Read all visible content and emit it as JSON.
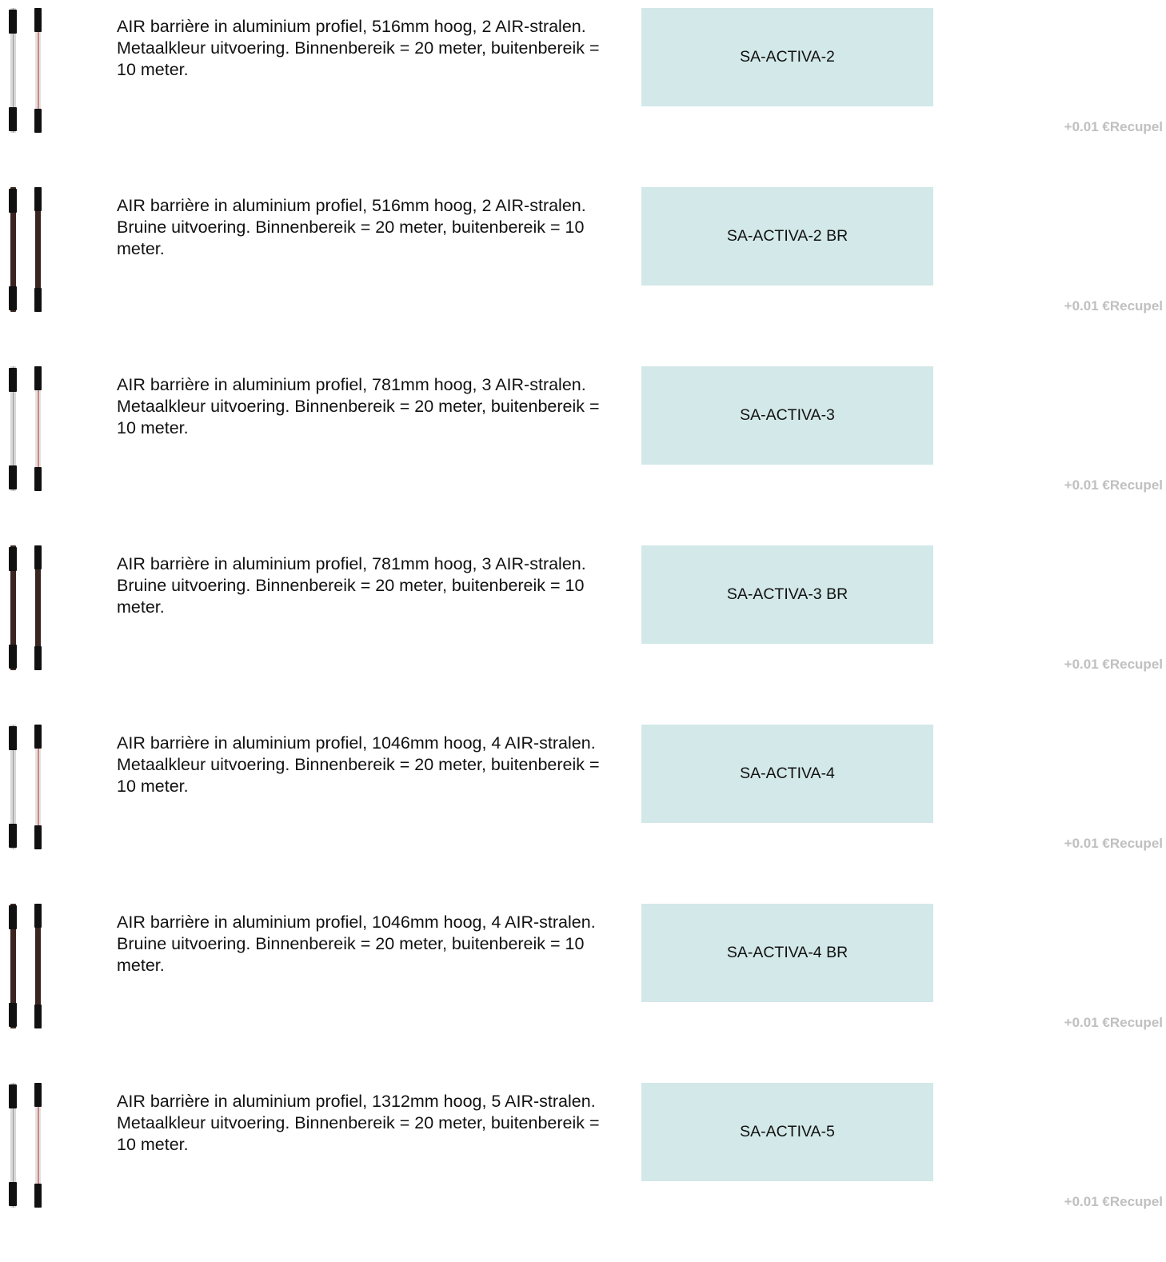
{
  "rows": [
    {
      "description": "AIR barrière in aluminium profiel, 516mm hoog, 2 AIR-stralen. Metaalkleur uitvoering. Binnenbereik = 20 meter, buitenbereik = 10 meter.",
      "code": "SA-ACTIVA-2",
      "recupel": "+0.01 €Recupel"
    },
    {
      "description": "AIR barrière in aluminium profiel, 516mm hoog, 2 AIR-stralen. Bruine uitvoering. Binnenbereik = 20 meter, buitenbereik = 10 meter.",
      "code": "SA-ACTIVA-2 BR",
      "recupel": "+0.01 €Recupel"
    },
    {
      "description": "AIR barrière in aluminium profiel, 781mm hoog, 3 AIR-stralen. Metaalkleur uitvoering. Binnenbereik = 20 meter, buitenbereik = 10 meter.",
      "code": "SA-ACTIVA-3",
      "recupel": "+0.01 €Recupel"
    },
    {
      "description": "AIR barrière in aluminium profiel, 781mm hoog, 3 AIR-stralen. Bruine uitvoering. Binnenbereik = 20 meter, buitenbereik = 10 meter.",
      "code": "SA-ACTIVA-3 BR",
      "recupel": "+0.01 €Recupel"
    },
    {
      "description": "AIR barrière in aluminium profiel, 1046mm hoog, 4 AIR-stralen. Metaalkleur uitvoering. Binnenbereik = 20 meter, buitenbereik = 10 meter.",
      "code": "SA-ACTIVA-4",
      "recupel": "+0.01 €Recupel"
    },
    {
      "description": "AIR barrière in aluminium profiel, 1046mm hoog, 4 AIR-stralen. Bruine uitvoering. Binnenbereik = 20 meter, buitenbereik = 10 meter.",
      "code": "SA-ACTIVA-4 BR",
      "recupel": "+0.01 €Recupel"
    },
    {
      "description": "AIR barrière in aluminium profiel, 1312mm hoog, 5 AIR-stralen. Metaalkleur uitvoering. Binnenbereik = 20 meter, buitenbereik = 10 meter.",
      "code": "SA-ACTIVA-5",
      "recupel": "+0.01 €Recupel"
    }
  ]
}
